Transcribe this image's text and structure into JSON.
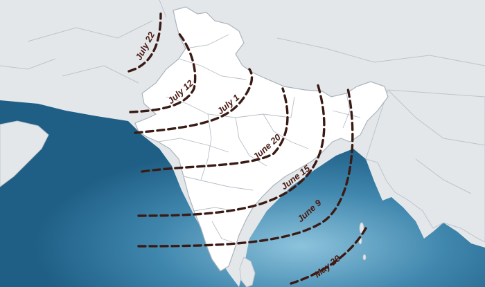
{
  "map": {
    "colors": {
      "land": "#e3e7ea",
      "land_border": "#bcc4cb",
      "india": "#ffffff",
      "india_state_border": "#b7bfc6",
      "sea_deep": "#2a6f97",
      "sea_light": "#7bb7d4",
      "isoline": "#3a1a14",
      "label": "#4a1a12"
    },
    "isolines": [
      {
        "date": "May 29"
      },
      {
        "date": "June 9"
      },
      {
        "date": "June 15"
      },
      {
        "date": "June 20"
      },
      {
        "date": "July 1"
      },
      {
        "date": "July 12"
      },
      {
        "date": "July 22"
      }
    ]
  }
}
